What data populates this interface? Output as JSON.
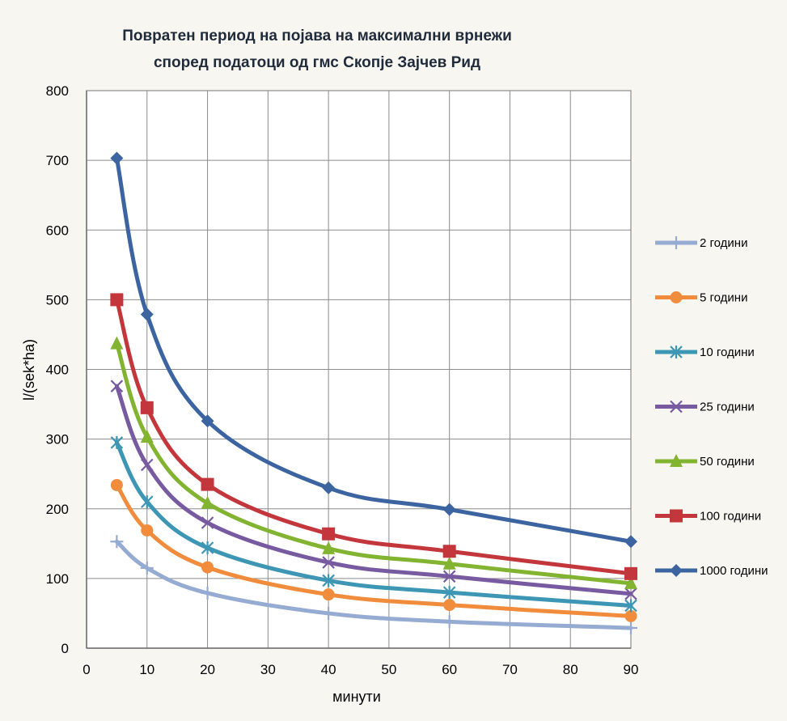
{
  "chart_data": {
    "type": "line",
    "title": [
      "Повратен период на појава на максимални врнежи",
      "според податоци од гмс Скопје Зајчев Рид"
    ],
    "xlabel": "минути",
    "ylabel": "l/(sek*ha)",
    "xlim": [
      0,
      90
    ],
    "ylim": [
      0,
      800
    ],
    "x_ticks": [
      0,
      10,
      20,
      30,
      40,
      50,
      60,
      70,
      80,
      90
    ],
    "y_ticks": [
      0,
      100,
      200,
      300,
      400,
      500,
      600,
      700,
      800
    ],
    "grid": true,
    "legend_position": "right",
    "x": [
      5,
      10,
      20,
      40,
      60,
      90
    ],
    "series": [
      {
        "name": "2 години",
        "color": "#96abd2",
        "marker": "plus",
        "values": [
          153,
          115,
          79,
          50,
          38,
          29
        ]
      },
      {
        "name": "5 години",
        "color": "#f08c3c",
        "marker": "circle",
        "values": [
          234,
          169,
          116,
          77,
          62,
          46
        ]
      },
      {
        "name": "10 години",
        "color": "#3c96b4",
        "marker": "star",
        "values": [
          295,
          210,
          144,
          97,
          80,
          61
        ]
      },
      {
        "name": "25 години",
        "color": "#785aa0",
        "marker": "x",
        "values": [
          376,
          263,
          180,
          123,
          103,
          78
        ]
      },
      {
        "name": "50 години",
        "color": "#82b432",
        "marker": "triangle",
        "values": [
          437,
          303,
          208,
          143,
          121,
          93
        ]
      },
      {
        "name": "100 години",
        "color": "#c3373c",
        "marker": "square",
        "values": [
          500,
          345,
          235,
          164,
          139,
          107
        ]
      },
      {
        "name": "1000 години",
        "color": "#3c64a0",
        "marker": "diamond",
        "values": [
          703,
          479,
          326,
          230,
          199,
          153
        ]
      }
    ]
  }
}
